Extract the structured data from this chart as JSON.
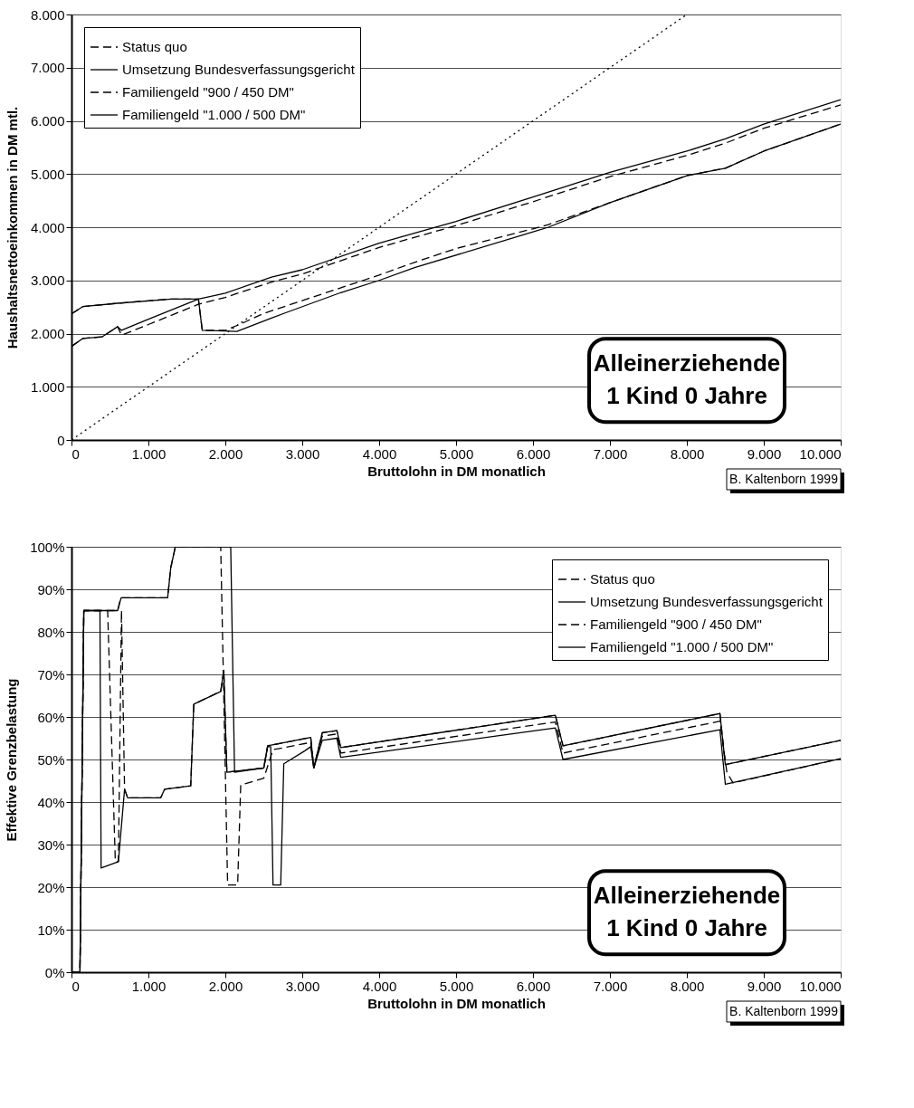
{
  "chart_data": [
    {
      "type": "line",
      "xlabel": "Bruttolohn in DM monatlich",
      "ylabel": "Haushaltsnettoeinkommen in DM mtl.",
      "xlim": [
        0,
        10000
      ],
      "ylim": [
        0,
        8000
      ],
      "xticks": [
        0,
        {
          "value": 1000,
          "label": "1.000"
        },
        {
          "value": 2000,
          "label": "2.000"
        },
        {
          "value": 3000,
          "label": "3.000"
        },
        {
          "value": 4000,
          "label": "4.000"
        },
        {
          "value": 5000,
          "label": "5.000"
        },
        {
          "value": 6000,
          "label": "6.000"
        },
        {
          "value": 7000,
          "label": "7.000"
        },
        {
          "value": 8000,
          "label": "8.000"
        },
        {
          "value": 9000,
          "label": "9.000"
        },
        {
          "value": 10000,
          "label": "10.000"
        }
      ],
      "yticks": [
        0,
        {
          "value": 1000,
          "label": "1.000"
        },
        {
          "value": 2000,
          "label": "2.000"
        },
        {
          "value": 3000,
          "label": "3.000"
        },
        {
          "value": 4000,
          "label": "4.000"
        },
        {
          "value": 5000,
          "label": "5.000"
        },
        {
          "value": 6000,
          "label": "6.000"
        },
        {
          "value": 7000,
          "label": "7.000"
        },
        {
          "value": 8000,
          "label": "8.000"
        }
      ],
      "grid": "y",
      "legend": "top left",
      "series": [
        {
          "name": "Status quo",
          "color": "#000000",
          "line_style": "dashed",
          "x": [
            0,
            150,
            600,
            1300,
            1650,
            1700,
            2000,
            2200,
            2500,
            3000,
            4000,
            4460,
            5000,
            6000,
            6200,
            7000,
            8000,
            8500,
            9000,
            10000
          ],
          "values": [
            2370,
            2510,
            2570,
            2650,
            2650,
            2060,
            2060,
            2180,
            2380,
            2620,
            3100,
            3340,
            3600,
            3970,
            4050,
            4460,
            4970,
            5110,
            5430,
            5940
          ]
        },
        {
          "name": "Umsetzung Bundesverfassungsgericht",
          "color": "#000000",
          "line_style": "solid",
          "x": [
            0,
            150,
            600,
            1300,
            1650,
            1700,
            2150,
            2600,
            2800,
            3500,
            4000,
            4460,
            6200,
            7000,
            8000,
            8500,
            9000,
            10000
          ],
          "values": [
            2370,
            2510,
            2570,
            2650,
            2650,
            2060,
            2040,
            2290,
            2400,
            2770,
            3000,
            3240,
            4000,
            4460,
            4970,
            5110,
            5430,
            5940
          ]
        },
        {
          "name": "Familiengeld \"900 / 450 DM\"",
          "color": "#000000",
          "line_style": "dashed",
          "x": [
            0,
            150,
            400,
            600,
            650,
            1000,
            1650,
            2000,
            2600,
            3000,
            4000,
            5000,
            6000,
            7000,
            8000,
            8500,
            9000,
            10000
          ],
          "values": [
            1760,
            1910,
            1940,
            2130,
            1970,
            2170,
            2550,
            2680,
            2970,
            3120,
            3620,
            4030,
            4480,
            4950,
            5350,
            5580,
            5860,
            6300
          ]
        },
        {
          "name": "Familiengeld \"1.000 / 500 DM\"",
          "color": "#000000",
          "line_style": "solid",
          "x": [
            0,
            150,
            400,
            600,
            650,
            1000,
            1650,
            2000,
            2600,
            3000,
            4000,
            5000,
            6000,
            7000,
            8000,
            8500,
            9000,
            10000
          ],
          "values": [
            1760,
            1910,
            1940,
            2130,
            2060,
            2270,
            2650,
            2760,
            3060,
            3200,
            3700,
            4110,
            4570,
            5030,
            5430,
            5660,
            5940,
            6400
          ]
        },
        {
          "color": "#000000",
          "line_style": "dotted",
          "x": [
            0,
            8000
          ],
          "values": [
            0,
            8000
          ]
        }
      ],
      "annotations": [
        "Alleinerziehende\n1 Kind 0 Jahre",
        "B. Kaltenborn 1999"
      ]
    },
    {
      "type": "line",
      "xlabel": "Bruttolohn in DM monatlich",
      "ylabel": "Effektive Grenzbelastung",
      "xlim": [
        0,
        10000
      ],
      "ylim": [
        0,
        100
      ],
      "xticks": [
        0,
        {
          "value": 1000,
          "label": "1.000"
        },
        {
          "value": 2000,
          "label": "2.000"
        },
        {
          "value": 3000,
          "label": "3.000"
        },
        {
          "value": 4000,
          "label": "4.000"
        },
        {
          "value": 5000,
          "label": "5.000"
        },
        {
          "value": 6000,
          "label": "6.000"
        },
        {
          "value": 7000,
          "label": "7.000"
        },
        {
          "value": 8000,
          "label": "8.000"
        },
        {
          "value": 9000,
          "label": "9.000"
        },
        {
          "value": 10000,
          "label": "10.000"
        }
      ],
      "yticks": [
        {
          "value": 0,
          "label": "0%"
        },
        {
          "value": 10,
          "label": "10%"
        },
        {
          "value": 20,
          "label": "20%"
        },
        {
          "value": 30,
          "label": "30%"
        },
        {
          "value": 40,
          "label": "40%"
        },
        {
          "value": 50,
          "label": "50%"
        },
        {
          "value": 60,
          "label": "60%"
        },
        {
          "value": 70,
          "label": "70%"
        },
        {
          "value": 80,
          "label": "80%"
        },
        {
          "value": 90,
          "label": "90%"
        },
        {
          "value": 100,
          "label": "100%"
        }
      ],
      "grid": "y",
      "legend": "top right",
      "series": [
        {
          "name": "Status quo",
          "color": "#000000",
          "line_style": "dashed",
          "x": [
            0,
            110,
            160,
            600,
            640,
            1250,
            1290,
            1350,
            1940,
            2030,
            2160,
            2200,
            2500,
            2620,
            3110,
            3150,
            3260,
            3450,
            3500,
            6290,
            6390,
            8430,
            8520,
            8600,
            10000
          ],
          "values": [
            0,
            0,
            85,
            85,
            88,
            88,
            95,
            100,
            100,
            20.5,
            20.5,
            44,
            45.6,
            52.3,
            54,
            48,
            55.5,
            56,
            51.5,
            58.8,
            51.5,
            59,
            47,
            44.5,
            50.2
          ]
        },
        {
          "name": "Umsetzung Bundesverfassungsgericht",
          "color": "#000000",
          "line_style": "solid",
          "x": [
            0,
            110,
            160,
            600,
            645,
            1250,
            1290,
            1350,
            2070,
            2120,
            2500,
            2550,
            2590,
            2620,
            2720,
            2760,
            3030,
            3110,
            3150,
            3260,
            3450,
            3500,
            6290,
            6390,
            8430,
            8500,
            10000
          ],
          "values": [
            0,
            0,
            85,
            85,
            88,
            88,
            95,
            100,
            100,
            47,
            48,
            53,
            53,
            20.5,
            20.5,
            49,
            52,
            53,
            48,
            54.5,
            55,
            50.5,
            57.4,
            50,
            57,
            44.2,
            50.2
          ]
        },
        {
          "name": "Familiengeld \"900 / 450 DM\"",
          "color": "#000000",
          "line_style": "dashed",
          "x": [
            0,
            110,
            160,
            470,
            570,
            610,
            650,
            690,
            730,
            1160,
            1210,
            1550,
            1590,
            1940,
            1980,
            2020,
            2500,
            2550,
            3110,
            3150,
            3260,
            3450,
            3500,
            6290,
            6390,
            8430,
            8500,
            10000
          ],
          "values": [
            0,
            0,
            85,
            85,
            26,
            26,
            85,
            43,
            41,
            41,
            43,
            43.8,
            63,
            66,
            71,
            47,
            48,
            53.2,
            55.2,
            48,
            56.3,
            56.8,
            52.8,
            60.4,
            53.2,
            60.8,
            48.8,
            54.5
          ]
        },
        {
          "name": "Familiengeld \"1.000 / 500 DM\"",
          "color": "#000000",
          "line_style": "solid",
          "x": [
            0,
            110,
            160,
            370,
            385,
            610,
            690,
            730,
            1160,
            1210,
            1550,
            1590,
            1940,
            1980,
            2020,
            2500,
            2550,
            3110,
            3150,
            3260,
            3450,
            3500,
            6290,
            6390,
            8430,
            8500,
            10000
          ],
          "values": [
            0,
            0,
            85,
            85,
            24.5,
            26,
            43,
            41,
            41,
            43,
            43.8,
            63,
            66,
            71,
            47,
            48,
            53.2,
            55.2,
            48,
            56.3,
            56.8,
            52.8,
            60.4,
            53.2,
            60.8,
            48.8,
            54.5
          ]
        }
      ],
      "annotations": [
        "Alleinerziehende\n1 Kind 0 Jahre",
        "B. Kaltenborn 1999"
      ]
    }
  ]
}
